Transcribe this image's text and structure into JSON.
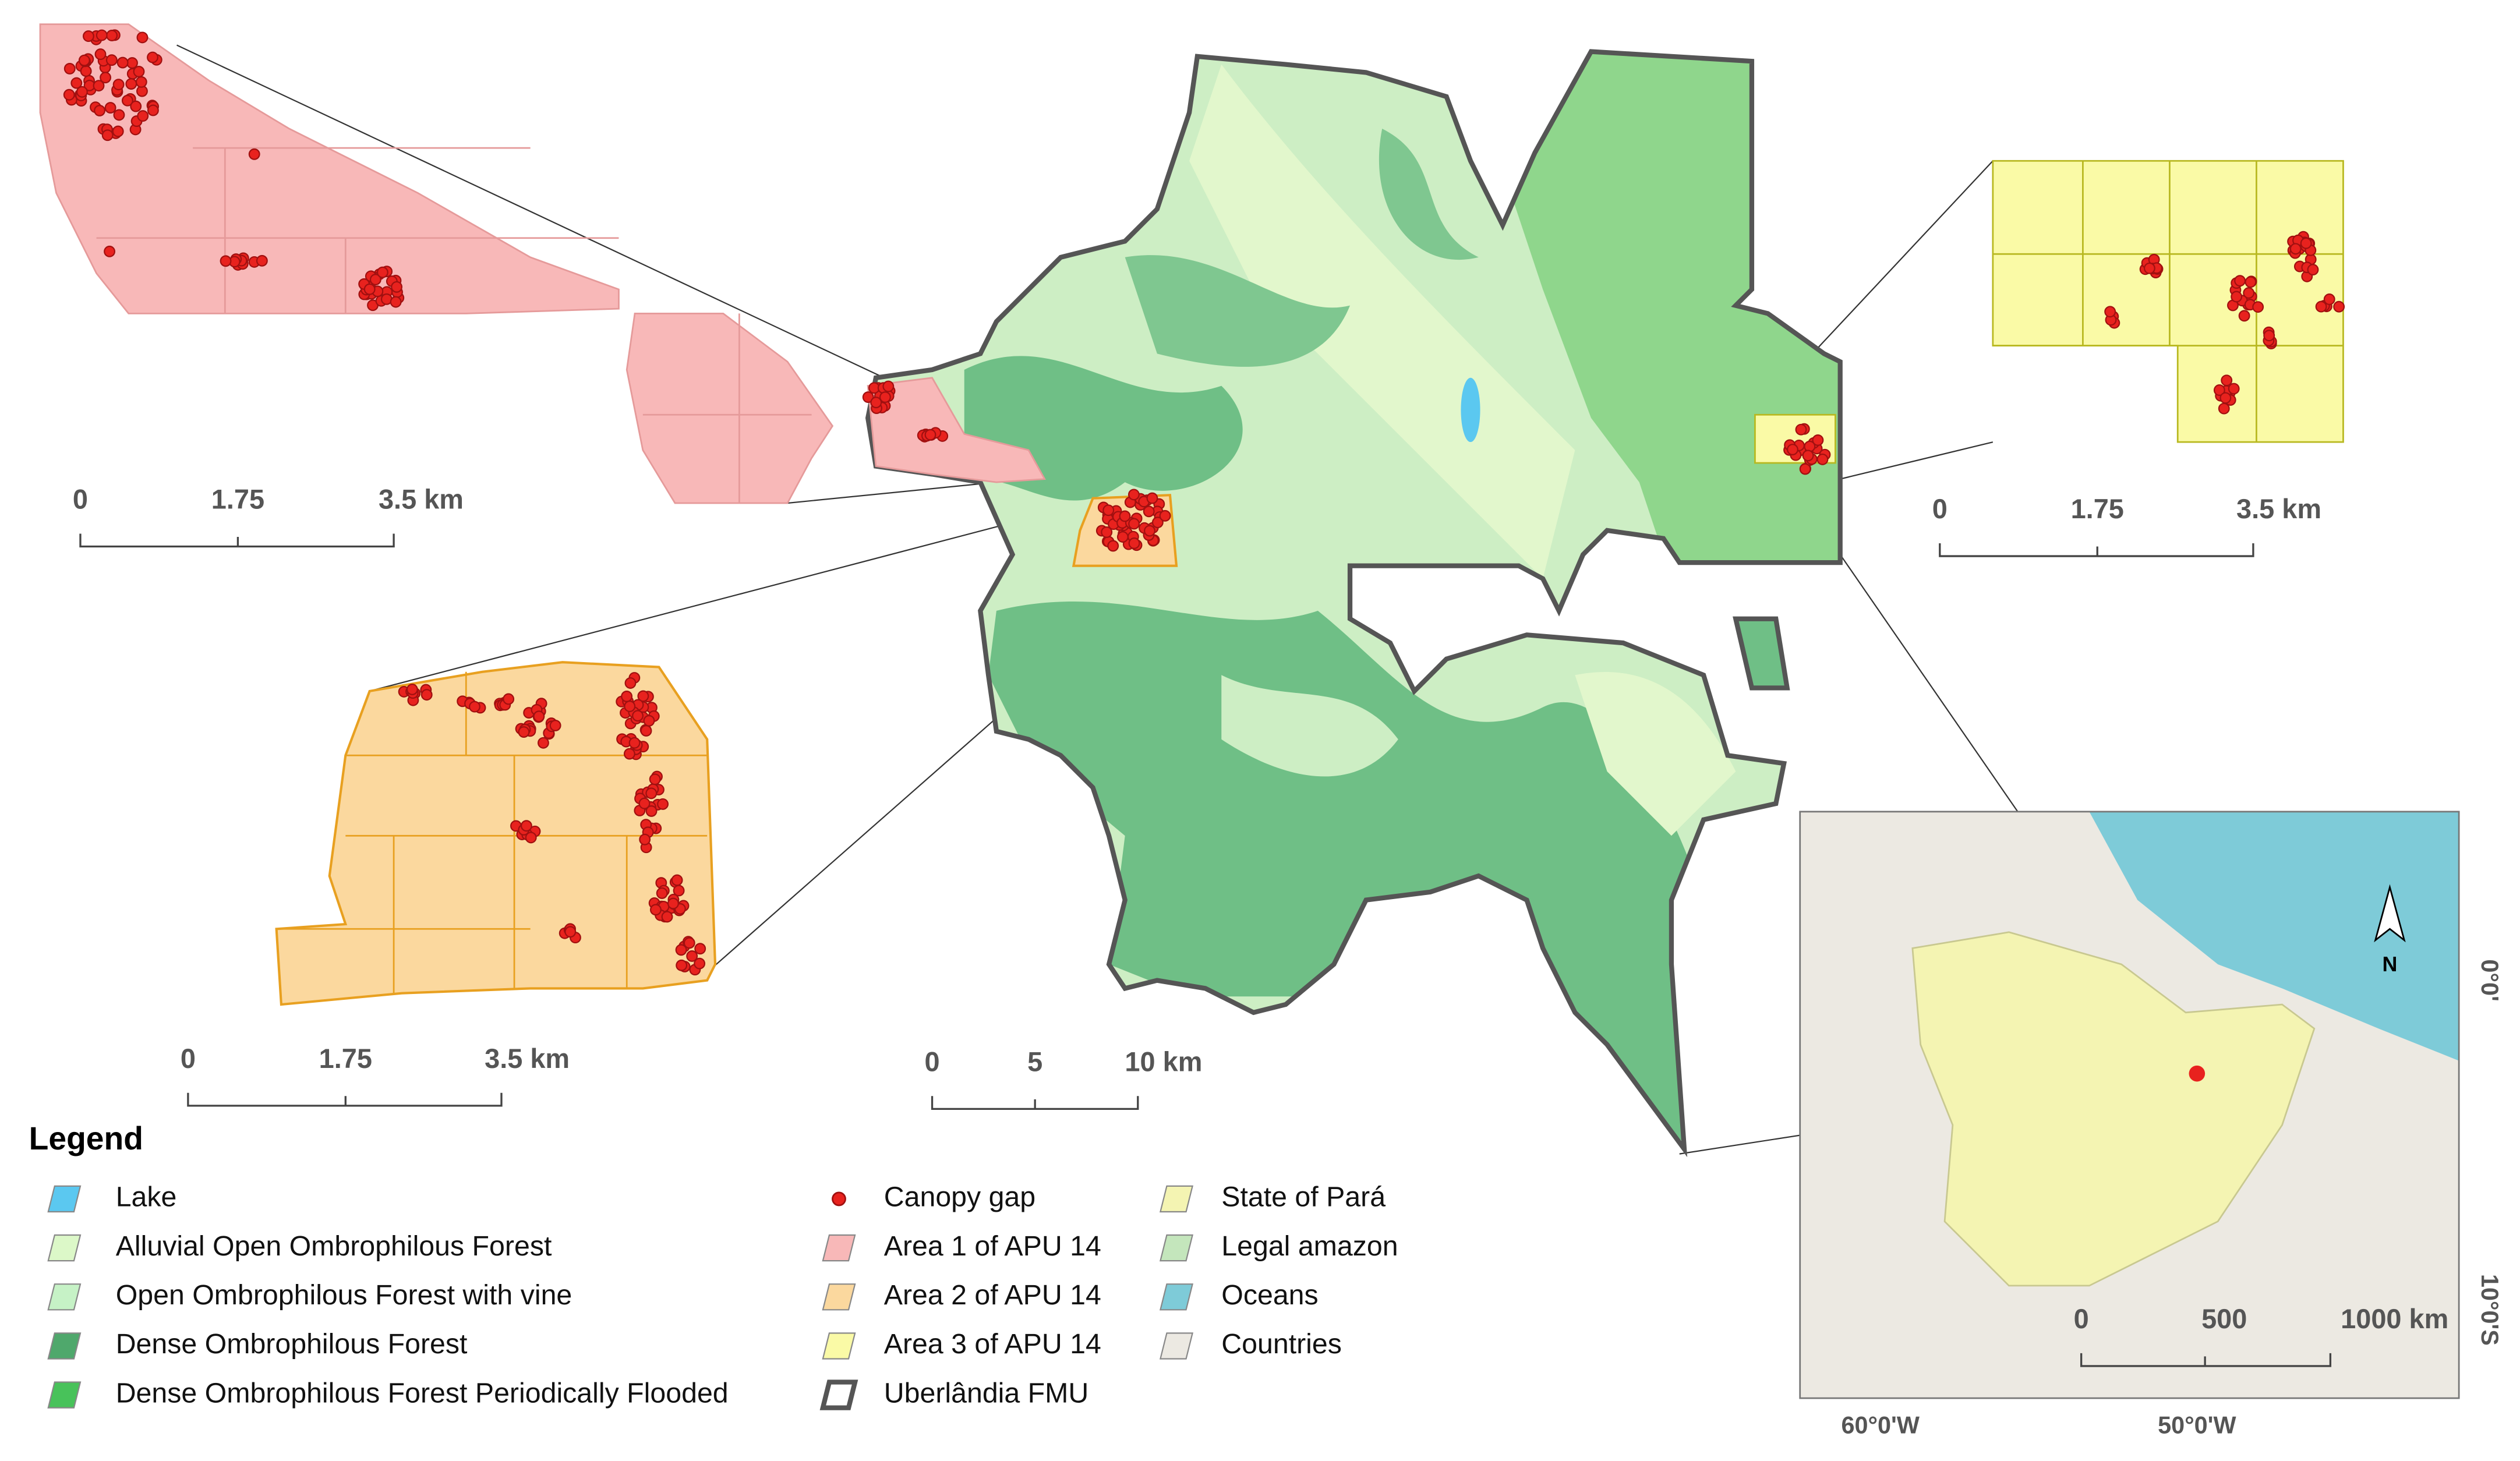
{
  "map": {
    "inset_area1": {
      "scale": [
        "0",
        "1.75",
        "3.5 km"
      ]
    },
    "inset_area2": {
      "scale": [
        "0",
        "1.75",
        "3.5 km"
      ]
    },
    "inset_area3": {
      "scale": [
        "0",
        "1.75",
        "3.5 km"
      ]
    },
    "main_map": {
      "scale": [
        "0",
        "5",
        "10 km"
      ]
    },
    "locator": {
      "scale": [
        "0",
        "500",
        "1000 km"
      ],
      "north": "N",
      "lon_labels": [
        "60°0'W",
        "50°0'W"
      ],
      "lat_labels": [
        "0°0'",
        "10°0'S"
      ]
    },
    "legend": {
      "title": "Legend",
      "items": [
        {
          "label": "Lake",
          "color": "#5bc8f0",
          "kind": "patch"
        },
        {
          "label": "Alluvial Open Ombrophilous Forest",
          "color": "#dcf8c8",
          "kind": "patch"
        },
        {
          "label": "Open Ombrophilous Forest with vine",
          "color": "#c6f2c6",
          "kind": "patch"
        },
        {
          "label": "Dense Ombrophilous Forest",
          "color": "#4fa86c",
          "kind": "patch"
        },
        {
          "label": "Dense Ombrophilous Forest Periodically Flooded",
          "color": "#48c25a",
          "kind": "patch"
        },
        {
          "label": "Canopy gap",
          "color": "#e8221e",
          "kind": "point"
        },
        {
          "label": "Area 1 of APU 14",
          "color": "#f8b8b8",
          "kind": "patch"
        },
        {
          "label": "Area 2 of APU 14",
          "color": "#fbd89e",
          "kind": "patch"
        },
        {
          "label": "Area 3 of APU 14",
          "color": "#fafaa6",
          "kind": "patch"
        },
        {
          "label": "Uberlândia FMU",
          "color": "#ffffff",
          "kind": "outline"
        },
        {
          "label": "State of Pará",
          "color": "#f4f4b2",
          "kind": "patch"
        },
        {
          "label": "Legal amazon",
          "color": "#c4e6bc",
          "kind": "patch"
        },
        {
          "label": "Oceans",
          "color": "#7ecbd8",
          "kind": "patch"
        },
        {
          "label": "Countries",
          "color": "#ece9e2",
          "kind": "patch"
        }
      ]
    }
  }
}
